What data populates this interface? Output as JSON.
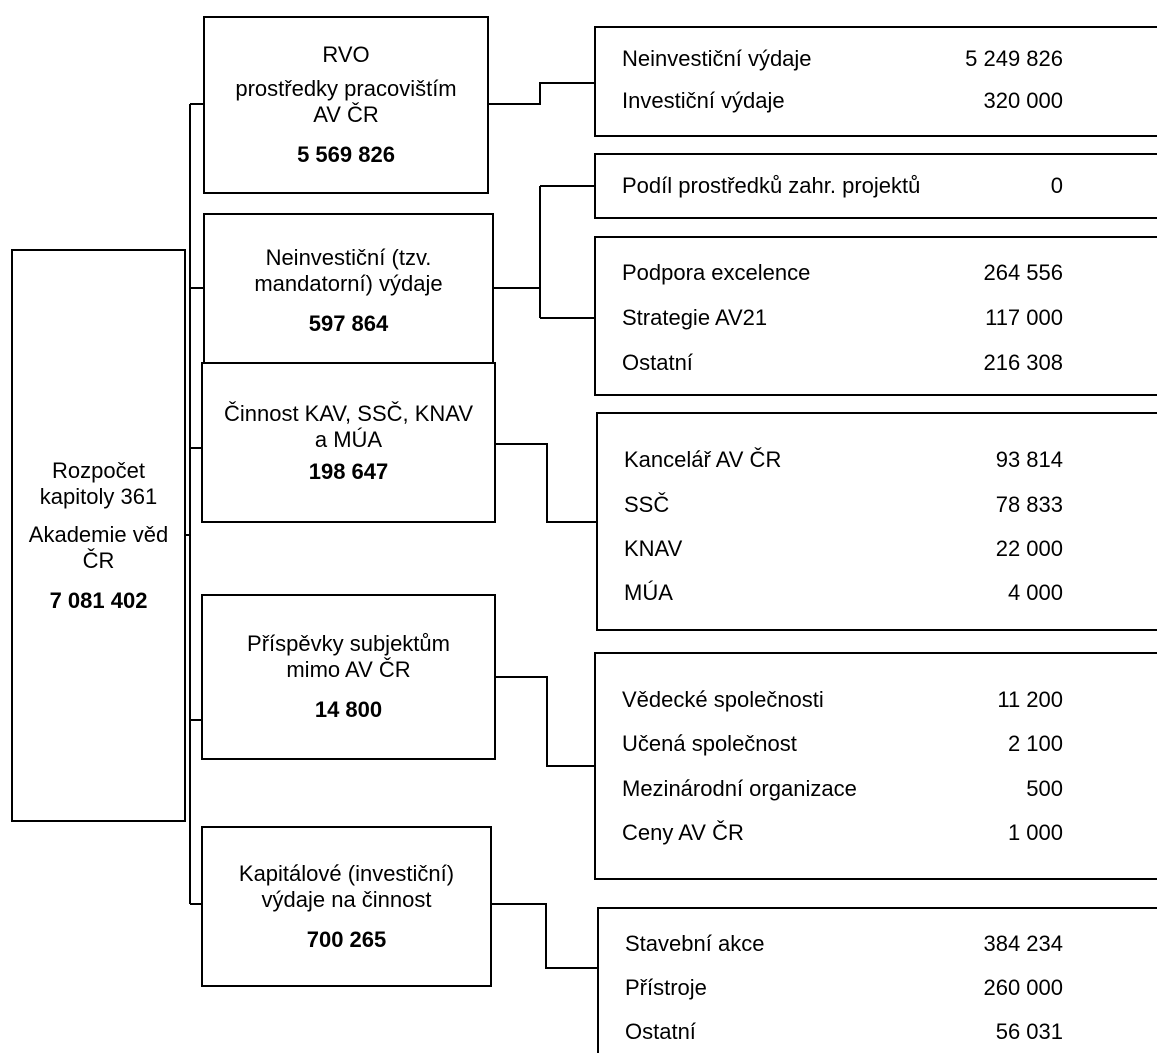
{
  "root": {
    "lines": [
      "Rozpočet",
      "kapitoly 361",
      "Akademie věd",
      "ČR"
    ],
    "amount": "7 081 402"
  },
  "nodes": [
    {
      "id": "rvo",
      "lines": [
        "RVO",
        "prostředky pracovištím",
        "AV ČR"
      ],
      "amount": "5 569 826",
      "details": [
        {
          "label": "Neinvestiční výdaje",
          "value": "5 249 826"
        },
        {
          "label": "Investiční výdaje",
          "value": "320 000"
        }
      ]
    },
    {
      "id": "mandatory",
      "lines": [
        "Neinvestiční (tzv.",
        "mandatorní) výdaje"
      ],
      "amount": "597 864",
      "foreign_projects": {
        "label": "Podíl prostředků zahr. projektů",
        "value": "0"
      },
      "details": [
        {
          "label": "Podpora excelence",
          "value": "264 556"
        },
        {
          "label": "Strategie AV21",
          "value": "117 000"
        },
        {
          "label": "Ostatní",
          "value": "216 308"
        }
      ]
    },
    {
      "id": "kav",
      "lines": [
        "Činnost KAV, SSČ, KNAV",
        "a MÚA"
      ],
      "amount": "198 647",
      "details": [
        {
          "label": "Kancelář AV ČR",
          "value": "93 814"
        },
        {
          "label": "SSČ",
          "value": "78 833"
        },
        {
          "label": "KNAV",
          "value": "22 000"
        },
        {
          "label": "MÚA",
          "value": "4 000"
        }
      ]
    },
    {
      "id": "contrib",
      "lines": [
        "Příspěvky subjektům",
        "mimo AV ČR"
      ],
      "amount": "14 800",
      "details": [
        {
          "label": "Vědecké společnosti",
          "value": "11 200"
        },
        {
          "label": "Učená společnost",
          "value": "2 100"
        },
        {
          "label": "Mezinárodní organizace",
          "value": "500"
        },
        {
          "label": "Ceny AV ČR",
          "value": "1 000"
        }
      ]
    },
    {
      "id": "capital",
      "lines": [
        "Kapitálové (investiční)",
        "výdaje na činnost"
      ],
      "amount": "700 265",
      "details": [
        {
          "label": "Stavební akce",
          "value": "384 234"
        },
        {
          "label": "Přístroje",
          "value": "260 000"
        },
        {
          "label": "Ostatní",
          "value": "56 031"
        }
      ]
    }
  ]
}
